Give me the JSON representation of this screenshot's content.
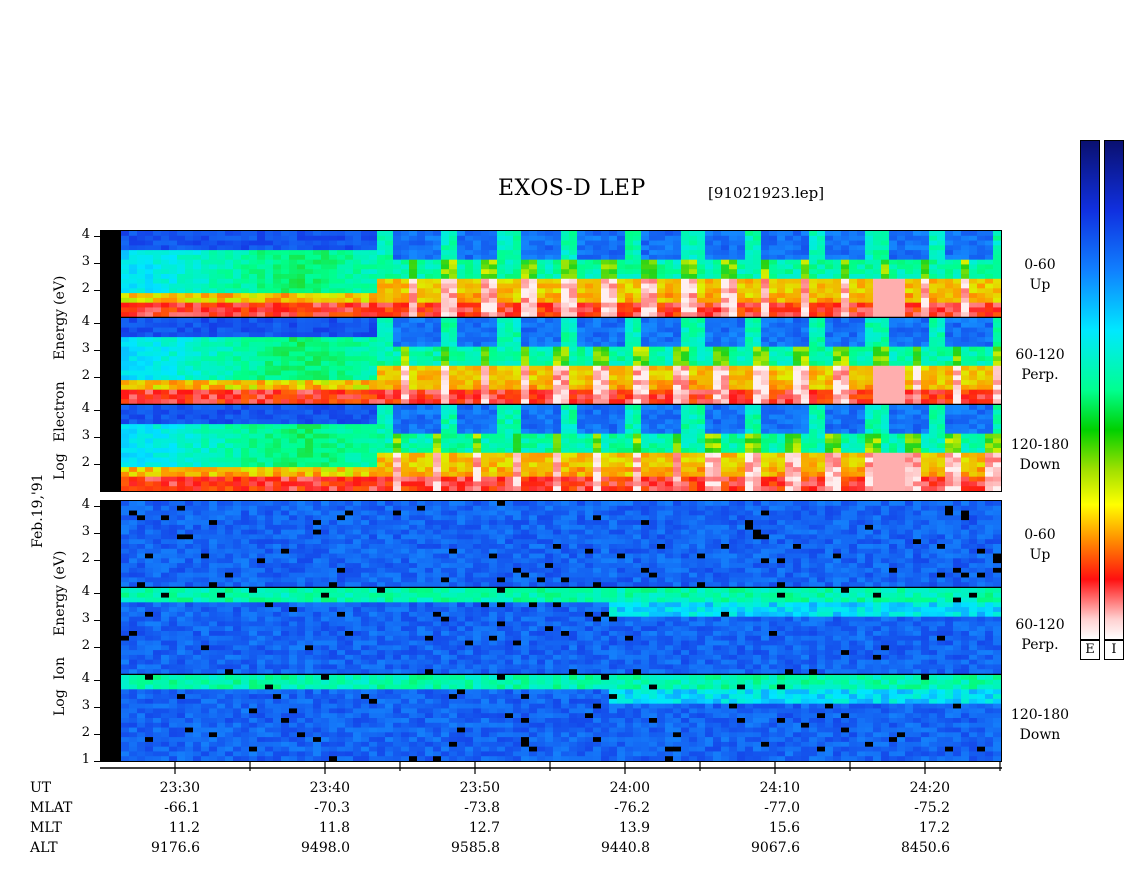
{
  "title": "EXOS-D LEP",
  "filename": "[91021923.lep]",
  "date_label": "Feb.19,'91",
  "electron_ylabel": [
    "Log",
    "Electron",
    "Energy",
    "(eV)"
  ],
  "ion_ylabel": [
    "Log",
    "Ion",
    "Energy",
    "(eV)"
  ],
  "panels": [
    {
      "id": "e-up",
      "angle": "0-60",
      "dir": "Up"
    },
    {
      "id": "e-perp",
      "angle": "60-120",
      "dir": "Perp."
    },
    {
      "id": "e-down",
      "angle": "120-180",
      "dir": "Down"
    },
    {
      "id": "i-up",
      "angle": "0-60",
      "dir": "Up"
    },
    {
      "id": "i-perp",
      "angle": "60-120",
      "dir": "Perp."
    },
    {
      "id": "i-down",
      "angle": "120-180",
      "dir": "Down"
    }
  ],
  "yticks": [
    "4",
    "3",
    "2"
  ],
  "ion_down_yticks": [
    "4",
    "3",
    "2",
    "1"
  ],
  "colorbar_labels": {
    "electron": "E",
    "ion": "I"
  },
  "colors": {
    "low": "#0a1a9a",
    "mid": "#00c8ff",
    "green": "#20d020",
    "yellow": "#ffe000",
    "red": "#ff2020",
    "high": "#ffffff"
  },
  "chart_data": {
    "type": "heatmap",
    "title": "EXOS-D LEP",
    "x_axis": "UT",
    "y_axis": "Log Energy (eV)",
    "ylim": [
      1,
      4.2
    ],
    "x_ticks": [
      "23:30",
      "23:40",
      "23:50",
      "24:00",
      "24:10",
      "24:20"
    ],
    "ephemeris": [
      {
        "label": "UT",
        "values": [
          "23:30",
          "23:40",
          "23:50",
          "24:00",
          "24:10",
          "24:20"
        ]
      },
      {
        "label": "MLAT",
        "values": [
          "-66.1",
          "-70.3",
          "-73.8",
          "-76.2",
          "-77.0",
          "-75.2"
        ]
      },
      {
        "label": "MLT",
        "values": [
          "11.2",
          "11.8",
          "12.7",
          "13.9",
          "15.6",
          "17.2"
        ]
      },
      {
        "label": "ALT",
        "values": [
          "9176.6",
          "9498.0",
          "9585.8",
          "9440.8",
          "9067.6",
          "8450.6"
        ]
      }
    ]
  }
}
